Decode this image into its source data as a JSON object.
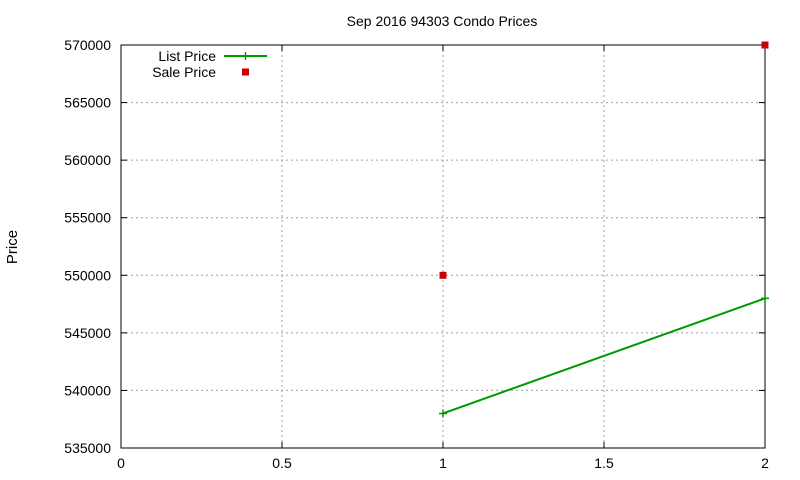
{
  "chart_data": {
    "type": "line",
    "title": "Sep 2016 94303 Condo Prices",
    "xlabel": "",
    "ylabel": "Price",
    "xlim": [
      0,
      2
    ],
    "ylim": [
      535000,
      570000
    ],
    "x_ticks": [
      0,
      0.5,
      1,
      1.5,
      2
    ],
    "x_tick_labels": [
      "0",
      "0.5",
      "1",
      "1.5",
      "2"
    ],
    "y_ticks": [
      535000,
      540000,
      545000,
      550000,
      555000,
      560000,
      565000,
      570000
    ],
    "y_tick_labels": [
      "535000",
      "540000",
      "545000",
      "550000",
      "555000",
      "560000",
      "565000",
      "570000"
    ],
    "grid": true,
    "legend_position": "top-left",
    "series": [
      {
        "name": "List Price",
        "style": "line-with-plus-markers",
        "color": "#009900",
        "points": [
          [
            1,
            538000
          ],
          [
            2,
            548000
          ]
        ]
      },
      {
        "name": "Sale Price",
        "style": "square-markers",
        "color": "#cc0000",
        "points": [
          [
            1,
            550000
          ],
          [
            2,
            570000
          ]
        ]
      }
    ]
  }
}
